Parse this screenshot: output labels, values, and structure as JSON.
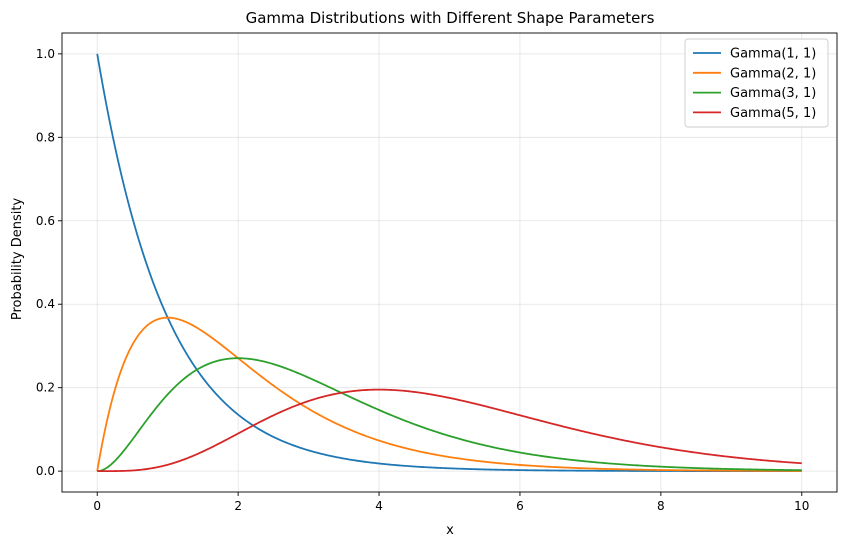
{
  "chart_data": {
    "type": "line",
    "title": "Gamma Distributions with Different Shape Parameters",
    "xlabel": "x",
    "ylabel": "Probability Density",
    "xlim": [
      -0.5,
      10.5
    ],
    "ylim": [
      -0.05,
      1.05
    ],
    "xticks": [
      0,
      2,
      4,
      6,
      8,
      10
    ],
    "xtick_labels": [
      "0",
      "2",
      "4",
      "6",
      "8",
      "10"
    ],
    "yticks": [
      0.0,
      0.2,
      0.4,
      0.6,
      0.8,
      1.0
    ],
    "ytick_labels": [
      "0.0",
      "0.2",
      "0.4",
      "0.6",
      "0.8",
      "1.0"
    ],
    "grid": true,
    "legend_position": "top-right",
    "x_range": [
      0,
      10
    ],
    "series": [
      {
        "name": "Gamma(1, 1)",
        "shape": 1,
        "scale": 1,
        "color": "#1f77b4",
        "x": [
          0,
          0.5,
          1,
          1.5,
          2,
          3,
          4,
          6,
          8,
          10
        ],
        "y": [
          1.0,
          0.607,
          0.368,
          0.223,
          0.135,
          0.05,
          0.018,
          0.002,
          0.0,
          0.0
        ]
      },
      {
        "name": "Gamma(2, 1)",
        "shape": 2,
        "scale": 1,
        "color": "#ff7f0e",
        "x": [
          0,
          0.5,
          1,
          1.5,
          2,
          3,
          4,
          6,
          8,
          10
        ],
        "y": [
          0.0,
          0.303,
          0.368,
          0.335,
          0.271,
          0.149,
          0.073,
          0.015,
          0.003,
          0.0
        ]
      },
      {
        "name": "Gamma(3, 1)",
        "shape": 3,
        "scale": 1,
        "color": "#2ca02c",
        "x": [
          0,
          0.5,
          1,
          1.5,
          2,
          3,
          4,
          6,
          8,
          10
        ],
        "y": [
          0.0,
          0.076,
          0.184,
          0.251,
          0.271,
          0.224,
          0.147,
          0.045,
          0.011,
          0.002
        ]
      },
      {
        "name": "Gamma(5, 1)",
        "shape": 5,
        "scale": 1,
        "color": "#d62728",
        "x": [
          0,
          0.5,
          1,
          1.5,
          2,
          3,
          4,
          6,
          8,
          10
        ],
        "y": [
          0.0,
          0.002,
          0.015,
          0.047,
          0.09,
          0.168,
          0.195,
          0.134,
          0.057,
          0.019
        ]
      }
    ]
  }
}
